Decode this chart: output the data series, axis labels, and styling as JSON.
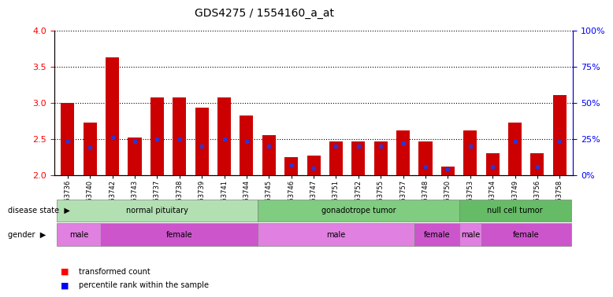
{
  "title": "GDS4275 / 1554160_a_at",
  "samples": [
    "GSM663736",
    "GSM663740",
    "GSM663742",
    "GSM663743",
    "GSM663737",
    "GSM663738",
    "GSM663739",
    "GSM663741",
    "GSM663744",
    "GSM663745",
    "GSM663746",
    "GSM663747",
    "GSM663751",
    "GSM663752",
    "GSM663755",
    "GSM663757",
    "GSM663748",
    "GSM663750",
    "GSM663753",
    "GSM663754",
    "GSM663749",
    "GSM663756",
    "GSM663758"
  ],
  "transformed_count": [
    3.0,
    2.72,
    3.63,
    2.52,
    3.07,
    3.07,
    2.93,
    3.07,
    2.82,
    2.55,
    2.25,
    2.27,
    2.47,
    2.47,
    2.47,
    2.62,
    2.47,
    2.12,
    2.62,
    2.3,
    2.72,
    2.3,
    3.1
  ],
  "percentile_rank": [
    23,
    19,
    26,
    23,
    25,
    25,
    20,
    25,
    23,
    20,
    7,
    5,
    20,
    20,
    20,
    22,
    6,
    4,
    20,
    6,
    23,
    6,
    23
  ],
  "ylim_left": [
    2.0,
    4.0
  ],
  "ylim_right": [
    0,
    100
  ],
  "yticks_left": [
    2.0,
    2.5,
    3.0,
    3.5,
    4.0
  ],
  "yticks_right": [
    0,
    25,
    50,
    75,
    100
  ],
  "bar_color": "#cc0000",
  "dot_color": "#3333cc",
  "bar_width": 0.6,
  "ybase": 2.0,
  "disease_state_groups": [
    {
      "label": "normal pituitary",
      "start": 0,
      "end": 9,
      "color": "#b3e0b3"
    },
    {
      "label": "gonadotrope tumor",
      "start": 9,
      "end": 18,
      "color": "#80cc80"
    },
    {
      "label": "null cell tumor",
      "start": 18,
      "end": 23,
      "color": "#66bb66"
    }
  ],
  "gender_groups": [
    {
      "label": "male",
      "start": 0,
      "end": 2,
      "color": "#e080e0"
    },
    {
      "label": "female",
      "start": 2,
      "end": 9,
      "color": "#cc55cc"
    },
    {
      "label": "male",
      "start": 9,
      "end": 16,
      "color": "#e080e0"
    },
    {
      "label": "female",
      "start": 16,
      "end": 18,
      "color": "#cc55cc"
    },
    {
      "label": "male",
      "start": 18,
      "end": 19,
      "color": "#e080e0"
    },
    {
      "label": "female",
      "start": 19,
      "end": 23,
      "color": "#cc55cc"
    }
  ]
}
